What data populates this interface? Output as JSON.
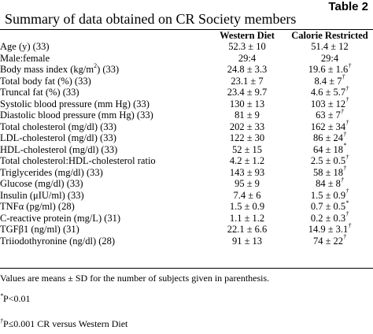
{
  "table_label": "Table 2",
  "title": "Summary of data obtained on CR Society members",
  "headers": {
    "western": "Western Diet",
    "cr": "Calorie Restricted"
  },
  "rows": [
    {
      "label": "Age (y) (33)",
      "label_sup": "",
      "label_after": "",
      "wd": "52.3 ± 10",
      "cr": "51.4 ± 12",
      "cr_sup": ""
    },
    {
      "label": "Male:female",
      "label_sup": "",
      "label_after": "",
      "wd": "29:4",
      "cr": "29:4",
      "cr_sup": ""
    },
    {
      "label": "Body mass index (kg/m",
      "label_sup": "2",
      "label_after": ") (33)",
      "wd": "24.8 ± 3.3",
      "cr": "19.6 ± 1.6",
      "cr_sup": "†"
    },
    {
      "label": "Total body fat (%) (33)",
      "label_sup": "",
      "label_after": "",
      "wd": "23.1 ± 7",
      "cr": "8.4 ± 7",
      "cr_sup": "†"
    },
    {
      "label": "Truncal fat (%) (33)",
      "label_sup": "",
      "label_after": "",
      "wd": "23.4 ± 9.7",
      "cr": "4.6 ± 5.7",
      "cr_sup": "†"
    },
    {
      "label": "Systolic blood pressure (mm Hg) (33)",
      "label_sup": "",
      "label_after": "",
      "wd": "130 ± 13",
      "cr": "103 ± 12",
      "cr_sup": "†"
    },
    {
      "label": "Diastolic blood pressure (mm Hg) (33)",
      "label_sup": "",
      "label_after": "",
      "wd": "81 ± 9",
      "cr": "63 ± 7",
      "cr_sup": "†"
    },
    {
      "label": "Total cholesterol (mg/dl) (33)",
      "label_sup": "",
      "label_after": "",
      "wd": "202 ± 33",
      "cr": "162 ± 34",
      "cr_sup": "†"
    },
    {
      "label": "LDL-cholesterol (mg/dl) (33)",
      "label_sup": "",
      "label_after": "",
      "wd": "122 ± 30",
      "cr": "86 ± 24",
      "cr_sup": "†"
    },
    {
      "label": "HDL-cholesterol (mg/dl) (33)",
      "label_sup": "",
      "label_after": "",
      "wd": "52 ± 15",
      "cr": "64 ± 18",
      "cr_sup": "*"
    },
    {
      "label": "Total cholesterol:HDL-cholesterol ratio",
      "label_sup": "",
      "label_after": "",
      "wd": "4.2 ± 1.2",
      "cr": "2.5 ± 0.5",
      "cr_sup": "†"
    },
    {
      "label": "Triglycerides (mg/dl) (33)",
      "label_sup": "",
      "label_after": "",
      "wd": "143 ± 93",
      "cr": "58 ± 18",
      "cr_sup": "†"
    },
    {
      "label": "Glucose (mg/dl) (33)",
      "label_sup": "",
      "label_after": "",
      "wd": "95 ± 9",
      "cr": "84 ± 8",
      "cr_sup": "†"
    },
    {
      "label": "Insulin (μIU/ml) (33)",
      "label_sup": "",
      "label_after": "",
      "wd": "7.4 ± 6",
      "cr": "1.5 ± 0.9",
      "cr_sup": "†"
    },
    {
      "label": "TNFα (pg/ml) (28)",
      "label_sup": "",
      "label_after": "",
      "wd": "1.5 ± 0.9",
      "cr": "0.7 ± 0.5",
      "cr_sup": "*"
    },
    {
      "label": "C-reactive protein (mg/L) (31)",
      "label_sup": "",
      "label_after": "",
      "wd": "1.1 ± 1.2",
      "cr": "0.2 ± 0.3",
      "cr_sup": "†"
    },
    {
      "label": "TGFβ1 (ng/ml) (31)",
      "label_sup": "",
      "label_after": "",
      "wd": "22.1 ± 6.6",
      "cr": "14.9 ± 3.1",
      "cr_sup": "†"
    },
    {
      "label": "Triiodothyronine (ng/dl) (28)",
      "label_sup": "",
      "label_after": "",
      "wd": "91 ± 13",
      "cr": "74 ± 22",
      "cr_sup": "†"
    }
  ],
  "footnote": "Values are means ± SD for the number of subjects given in parenthesis.",
  "footnotes": [
    {
      "mark": "*",
      "text": "P<0.01"
    },
    {
      "mark": "†",
      "text": "P≤0.001 CR versus Western Diet"
    }
  ]
}
